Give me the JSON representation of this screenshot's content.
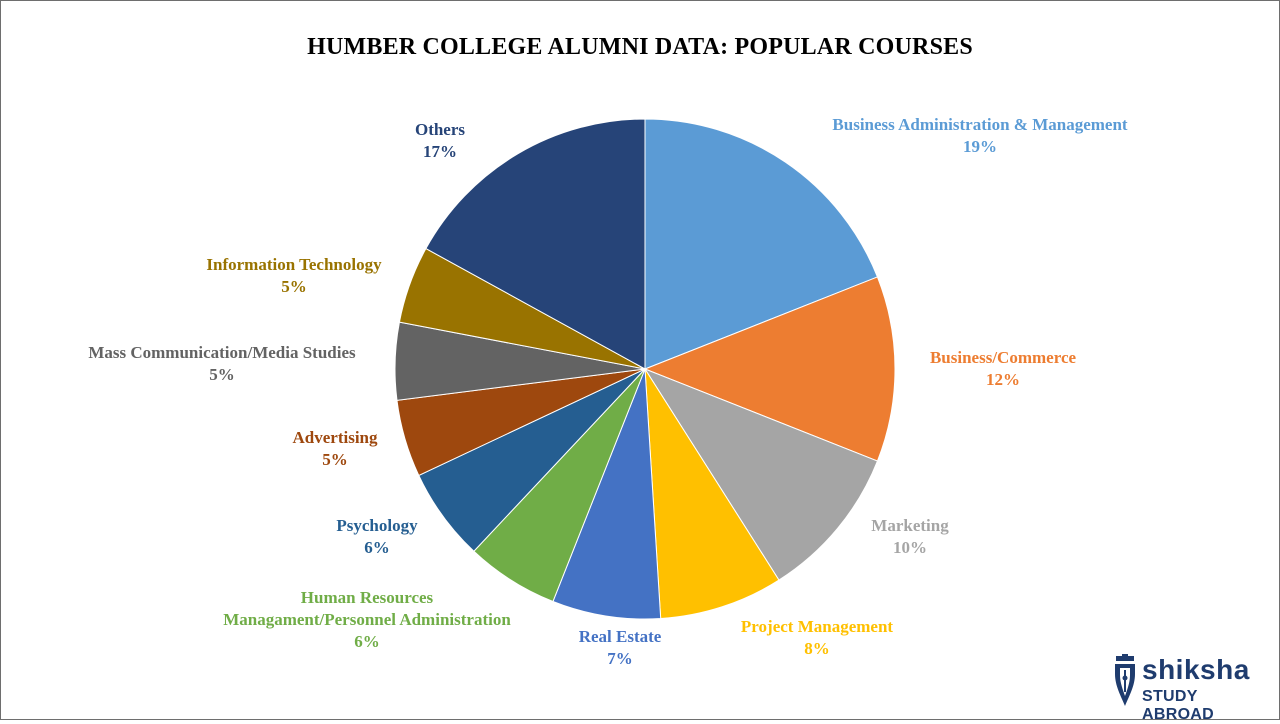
{
  "chart_data": {
    "type": "pie",
    "title": "HUMBER COLLEGE ALUMNI DATA: POPULAR COURSES",
    "slices": [
      {
        "label": "Business Administration & Management",
        "value": 19,
        "value_label": "19%",
        "color": "#5b9bd5"
      },
      {
        "label": "Business/Commerce",
        "value": 12,
        "value_label": "12%",
        "color": "#ed7d31"
      },
      {
        "label": "Marketing",
        "value": 10,
        "value_label": "10%",
        "color": "#a5a5a5"
      },
      {
        "label": "Project Management",
        "value": 8,
        "value_label": "8%",
        "color": "#ffc000"
      },
      {
        "label": "Real Estate",
        "value": 7,
        "value_label": "7%",
        "color": "#4472c4"
      },
      {
        "label": "Human Resources Managament/Personnel Administration",
        "label_lines": [
          "Human Resources",
          "Managament/Personnel Administration"
        ],
        "value": 6,
        "value_label": "6%",
        "color": "#70ad47"
      },
      {
        "label": "Psychology",
        "value": 6,
        "value_label": "6%",
        "color": "#255e91"
      },
      {
        "label": "Advertising",
        "value": 5,
        "value_label": "5%",
        "color": "#9e480e"
      },
      {
        "label": "Mass Communication/Media Studies",
        "value": 5,
        "value_label": "5%",
        "color": "#636363"
      },
      {
        "label": "Information Technology",
        "value": 5,
        "value_label": "5%",
        "color": "#997300"
      },
      {
        "label": "Others",
        "value": 17,
        "value_label": "17%",
        "color": "#264478"
      }
    ]
  },
  "branding": {
    "name": "shiksha",
    "tagline": "STUDY ABROAD",
    "color": "#1f3c6e",
    "icon": "pen-nib-icon"
  }
}
